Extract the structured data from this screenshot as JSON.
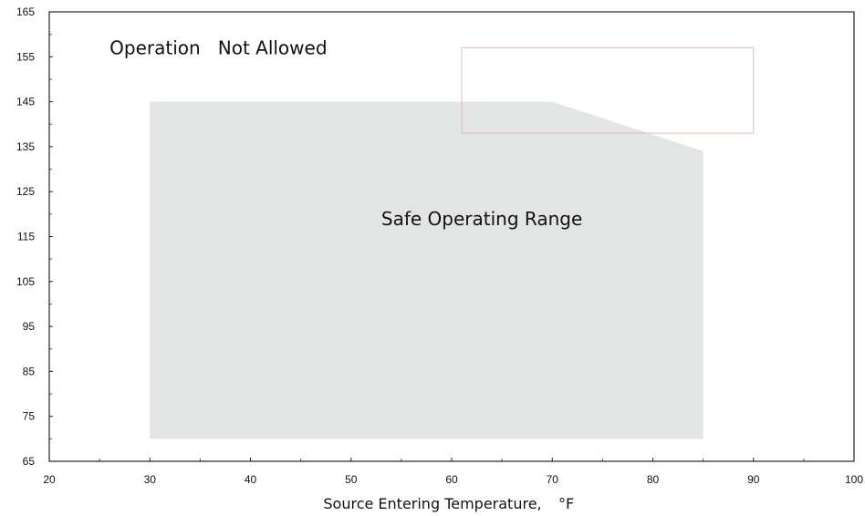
{
  "chart_data": {
    "type": "area",
    "title": "",
    "xlabel": "Source Entering Temperature,",
    "xlabel_unit": "°F",
    "ylabel": "",
    "xlim": [
      20,
      100
    ],
    "ylim": [
      65,
      165
    ],
    "x_ticks": [
      20,
      30,
      40,
      50,
      60,
      70,
      80,
      90,
      100
    ],
    "y_ticks": [
      65,
      75,
      85,
      95,
      105,
      115,
      125,
      135,
      145,
      155,
      165
    ],
    "grid": false,
    "legend": "none",
    "region": {
      "name": "Safe Operating Range",
      "points": [
        [
          30,
          70
        ],
        [
          30,
          145
        ],
        [
          70,
          145
        ],
        [
          85,
          134
        ],
        [
          85,
          70
        ]
      ],
      "color": "#e3e4e4"
    },
    "annotations": [
      {
        "text": "Operation   Not Allowed",
        "x": 26,
        "y": 157
      },
      {
        "text": "Safe Operating Range",
        "x": 63,
        "y": 119
      }
    ],
    "marker_box": {
      "x": [
        61,
        90
      ],
      "y": [
        138,
        157
      ],
      "color": "#e8b8bc"
    }
  }
}
